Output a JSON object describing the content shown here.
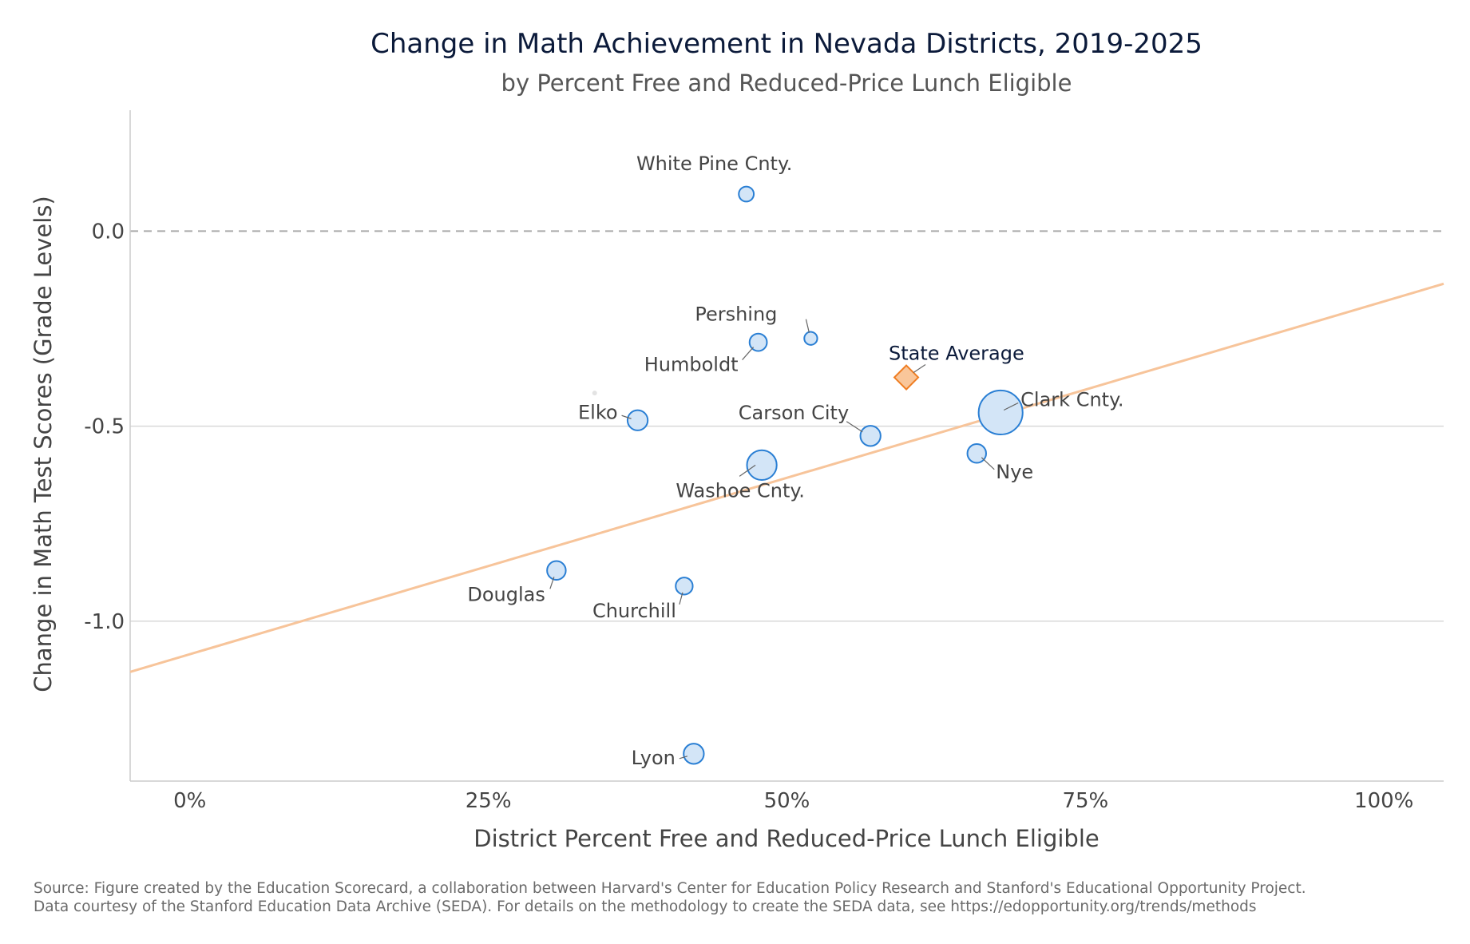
{
  "chart_data": {
    "type": "scatter",
    "title": "Change in Math Achievement in Nevada Districts, 2019-2025",
    "subtitle": "by Percent Free and Reduced-Price Lunch Eligible",
    "xlabel": "District Percent Free and Reduced-Price Lunch Eligible",
    "ylabel": "Change in Math Test Scores (Grade Levels)",
    "xlim": [
      -5,
      105
    ],
    "ylim": [
      -1.41,
      0.31
    ],
    "x_ticks": [
      {
        "value": 0,
        "label": "0%"
      },
      {
        "value": 25,
        "label": "25%"
      },
      {
        "value": 50,
        "label": "50%"
      },
      {
        "value": 75,
        "label": "75%"
      },
      {
        "value": 100,
        "label": "100%"
      }
    ],
    "y_ticks": [
      {
        "value": 0,
        "label": "0.0"
      },
      {
        "value": -0.5,
        "label": "-0.5"
      },
      {
        "value": -1,
        "label": "-1.0"
      }
    ],
    "reference_line_y": 0,
    "trend_line": {
      "x": [
        -5,
        105
      ],
      "y": [
        -1.13,
        -0.135
      ],
      "color": "#f7c49a"
    },
    "points": [
      {
        "label": "White Pine Cnty.",
        "x": 46.6,
        "y": 0.095,
        "size": 1
      },
      {
        "label": "Pershing",
        "x": 52.0,
        "y": -0.275,
        "size": 0.6
      },
      {
        "label": "Humboldt",
        "x": 47.6,
        "y": -0.285,
        "size": 1.6
      },
      {
        "label": "",
        "x": 33.9,
        "y": -0.415,
        "size": 0.3
      },
      {
        "label": "Elko",
        "x": 37.5,
        "y": -0.485,
        "size": 2.5
      },
      {
        "label": "Carson City",
        "x": 57.0,
        "y": -0.525,
        "size": 2.5
      },
      {
        "label": "Clark Cnty.",
        "x": 67.9,
        "y": -0.465,
        "size": 18
      },
      {
        "label": "Nye",
        "x": 65.9,
        "y": -0.57,
        "size": 2
      },
      {
        "label": "Washoe Cnty.",
        "x": 47.9,
        "y": -0.6,
        "size": 7
      },
      {
        "label": "Douglas",
        "x": 30.7,
        "y": -0.87,
        "size": 2
      },
      {
        "label": "Churchill",
        "x": 41.4,
        "y": -0.91,
        "size": 1.5
      },
      {
        "label": "Lyon",
        "x": 42.2,
        "y": -1.34,
        "size": 2.5
      }
    ],
    "state_average": {
      "label": "State Average",
      "x": 60.0,
      "y": -0.375
    },
    "colors": {
      "point_fill": "#d3e5f7",
      "point_stroke": "#2a7fd4",
      "state_fill": "#f9c69a",
      "state_stroke": "#ef7d22",
      "gridline": "#d9d9d9",
      "zero_line": "#aaaaaa"
    }
  },
  "source": {
    "line1": "Source: Figure created by the Education Scorecard, a collaboration between Harvard's Center for Education Policy Research and Stanford's Educational Opportunity Project.",
    "line2": "Data courtesy of the Stanford Education Data Archive (SEDA). For details on the methodology to create the SEDA data, see https://edopportunity.org/trends/methods"
  }
}
